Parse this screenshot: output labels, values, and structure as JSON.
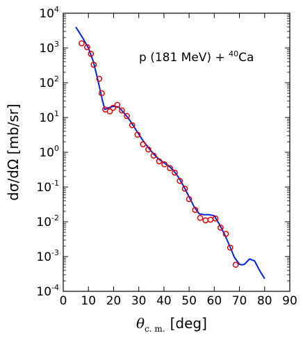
{
  "chart_data": {
    "type": "scatter",
    "annotation": {
      "text": "p (181 MeV) + ",
      "mass_number": "40",
      "nucleus": "Ca"
    },
    "xlabel": {
      "symbol": "θ",
      "subscript": "c. m.",
      "unit": "[deg]"
    },
    "ylabel": {
      "text": "dσ/dΩ  [mb/sr]"
    },
    "xlim": [
      0,
      90
    ],
    "ylim_log10": [
      -4,
      4
    ],
    "yscale": "log",
    "grid": false,
    "legend": "none",
    "x_ticks": [
      0,
      10,
      20,
      30,
      40,
      50,
      60,
      70,
      80,
      90
    ],
    "x_tick_labels": [
      "0",
      "10",
      "20",
      "30",
      "40",
      "50",
      "60",
      "70",
      "80",
      "90"
    ],
    "y_ticks_exp": [
      -4,
      -3,
      -2,
      -1,
      0,
      1,
      2,
      3,
      4
    ],
    "y_tick_base": "10",
    "y_tick_exponents": [
      "-4",
      "-3",
      "-2",
      "-1",
      "0",
      "1",
      "2",
      "3",
      "4"
    ],
    "series": [
      {
        "kind": "points",
        "color": "#e00000",
        "x": [
          7.3,
          9.5,
          11.0,
          12.1,
          14.3,
          15.3,
          16.7,
          18.5,
          19.8,
          21.5,
          23.3,
          25.3,
          27.4,
          29.5,
          31.7,
          33.8,
          35.9,
          38.1,
          40.2,
          42.4,
          44.3,
          46.3,
          48.3,
          50.0,
          52.4,
          54.4,
          56.5,
          58.5,
          60.5,
          62.5,
          64.6,
          66.3,
          68.5
        ],
        "y": [
          1360,
          1050,
          680,
          330,
          130,
          50,
          17,
          15,
          19,
          23,
          16,
          11,
          6,
          3.2,
          1.7,
          1.2,
          0.8,
          0.55,
          0.45,
          0.35,
          0.26,
          0.15,
          0.09,
          0.045,
          0.022,
          0.013,
          0.011,
          0.0115,
          0.0125,
          0.0068,
          0.0045,
          0.0018,
          0.00058
        ]
      },
      {
        "kind": "line",
        "color": "#0022dd",
        "x": [
          5.0,
          8.0,
          10.0,
          12.0,
          14.0,
          15.5,
          16.5,
          18.0,
          20.0,
          22.0,
          24.0,
          26.0,
          28.0,
          30.0,
          32.0,
          34.0,
          36.0,
          38.0,
          40.0,
          42.0,
          44.0,
          46.0,
          48.0,
          50.0,
          52.0,
          54.0,
          56.0,
          58.0,
          60.0,
          62.0,
          64.0,
          66.0,
          68.0,
          70.0,
          71.0,
          72.0,
          74.0,
          76.0,
          78.0,
          80.0
        ],
        "y": [
          4000,
          1800,
          1000,
          400,
          100,
          33,
          17,
          19,
          21,
          20,
          14,
          9.2,
          5.6,
          3.3,
          2.0,
          1.3,
          0.88,
          0.63,
          0.5,
          0.4,
          0.29,
          0.18,
          0.1,
          0.052,
          0.027,
          0.017,
          0.016,
          0.016,
          0.015,
          0.0085,
          0.0045,
          0.0021,
          0.00095,
          0.0006,
          0.00058,
          0.0006,
          0.00085,
          0.00075,
          0.0004,
          0.00023
        ]
      }
    ]
  }
}
